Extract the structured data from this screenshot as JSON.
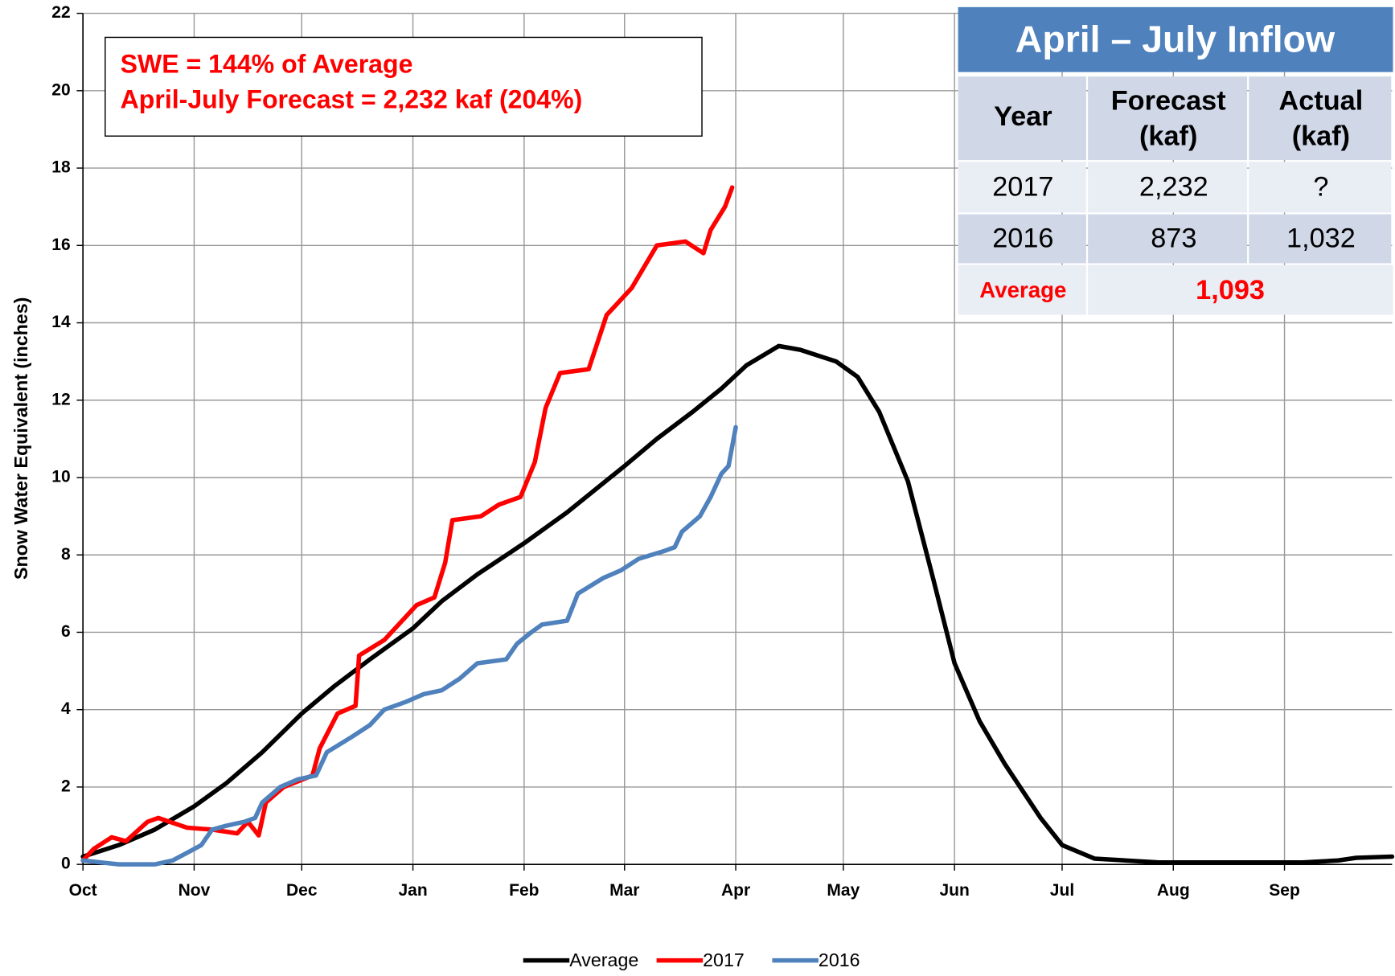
{
  "chart_data": {
    "type": "line",
    "y_label": "Snow Water Equivalent (inches)",
    "annotation": [
      "SWE = 144% of Average",
      "April-July Forecast = 2,232 kaf (204%)"
    ],
    "xlim": [
      0,
      365
    ],
    "xticks": [
      {
        "value": 0,
        "label": "Oct"
      },
      {
        "value": 31,
        "label": "Nov"
      },
      {
        "value": 61,
        "label": "Dec"
      },
      {
        "value": 92,
        "label": "Jan"
      },
      {
        "value": 123,
        "label": "Feb"
      },
      {
        "value": 151,
        "label": "Mar"
      },
      {
        "value": 182,
        "label": "Apr"
      },
      {
        "value": 212,
        "label": "May"
      },
      {
        "value": 243,
        "label": "Jun"
      },
      {
        "value": 273,
        "label": "Jul"
      },
      {
        "value": 304,
        "label": "Aug"
      },
      {
        "value": 335,
        "label": "Sep"
      }
    ],
    "ylim": [
      0,
      22
    ],
    "yticks": [
      0,
      2,
      4,
      6,
      8,
      10,
      12,
      14,
      16,
      18,
      20,
      22
    ],
    "grid": true,
    "legend": "bottom",
    "series": [
      {
        "name": "Average",
        "color": "#000000",
        "x": [
          0,
          10,
          20,
          31,
          40,
          50,
          61,
          70,
          80,
          92,
          100,
          110,
          123,
          135,
          151,
          160,
          170,
          178,
          185,
          194,
          200,
          210,
          216,
          222,
          230,
          237,
          243,
          250,
          257,
          267,
          273,
          282,
          300,
          340,
          350,
          355,
          365
        ],
        "values": [
          0.2,
          0.5,
          0.9,
          1.5,
          2.1,
          2.9,
          3.9,
          4.6,
          5.3,
          6.1,
          6.8,
          7.5,
          8.3,
          9.1,
          10.3,
          11.0,
          11.7,
          12.3,
          12.9,
          13.4,
          13.3,
          13.0,
          12.6,
          11.7,
          9.9,
          7.4,
          5.2,
          3.7,
          2.6,
          1.2,
          0.5,
          0.15,
          0.05,
          0.05,
          0.1,
          0.17,
          0.2
        ]
      },
      {
        "name": "2017",
        "color": "#ff0000",
        "x": [
          0,
          3,
          8,
          12,
          18,
          21,
          29,
          36,
          43,
          46,
          49,
          51,
          56,
          64,
          66,
          71,
          76,
          77,
          84,
          89,
          93,
          98,
          101,
          103,
          111,
          116,
          122,
          126,
          129,
          133,
          141,
          146,
          153,
          160,
          168,
          173,
          175,
          179,
          181
        ],
        "values": [
          0.1,
          0.4,
          0.7,
          0.6,
          1.1,
          1.2,
          0.95,
          0.9,
          0.8,
          1.1,
          0.75,
          1.6,
          2.0,
          2.3,
          3.0,
          3.9,
          4.1,
          5.4,
          5.8,
          6.3,
          6.7,
          6.9,
          7.8,
          8.9,
          9.0,
          9.3,
          9.5,
          10.4,
          11.8,
          12.7,
          12.8,
          14.2,
          14.9,
          16.0,
          16.1,
          15.8,
          16.4,
          17.0,
          17.5
        ]
      },
      {
        "name": "2016",
        "color": "#4f81bd",
        "x": [
          0,
          10,
          20,
          25,
          29,
          33,
          36,
          40,
          45,
          48,
          50,
          55,
          60,
          65,
          68,
          75,
          80,
          84,
          90,
          95,
          100,
          105,
          110,
          118,
          121,
          125,
          128,
          135,
          138,
          145,
          150,
          155,
          162,
          165,
          167,
          172,
          175,
          178,
          180,
          182
        ],
        "values": [
          0.1,
          0.0,
          0.0,
          0.1,
          0.3,
          0.5,
          0.9,
          1.0,
          1.1,
          1.2,
          1.6,
          2.0,
          2.2,
          2.3,
          2.9,
          3.3,
          3.6,
          4.0,
          4.2,
          4.4,
          4.5,
          4.8,
          5.2,
          5.3,
          5.7,
          6.0,
          6.2,
          6.3,
          7.0,
          7.4,
          7.6,
          7.9,
          8.1,
          8.2,
          8.6,
          9.0,
          9.5,
          10.1,
          10.3,
          11.3
        ]
      }
    ]
  },
  "table": {
    "title": "April – July Inflow",
    "header": [
      "Year",
      [
        "Forecast",
        "(kaf)"
      ],
      [
        "Actual",
        "(kaf)"
      ]
    ],
    "rows": [
      [
        "2017",
        "2,232",
        "?"
      ],
      [
        "2016",
        "873",
        "1,032"
      ]
    ],
    "average": [
      "Average",
      "1,093"
    ]
  }
}
